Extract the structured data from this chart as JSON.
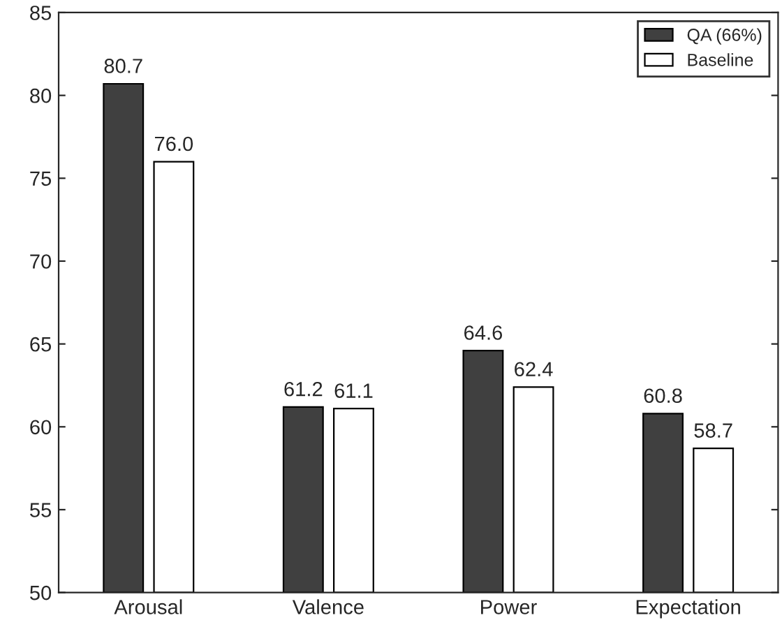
{
  "chart_data": {
    "type": "bar",
    "categories": [
      "Arousal",
      "Valence",
      "Power",
      "Expectation"
    ],
    "series": [
      {
        "name": "QA (66%)",
        "color": "#404040",
        "values": [
          80.7,
          61.2,
          64.6,
          60.8
        ],
        "value_labels": [
          "80.7",
          "61.2",
          "64.6",
          "60.8"
        ]
      },
      {
        "name": "Baseline",
        "color": "#ffffff",
        "values": [
          76.0,
          61.1,
          62.4,
          58.7
        ],
        "value_labels": [
          "76.0",
          "61.1",
          "62.4",
          "58.7"
        ]
      }
    ],
    "ylim": [
      50,
      85
    ],
    "yticks": [
      50,
      55,
      60,
      65,
      70,
      75,
      80,
      85
    ],
    "grid": false,
    "legend": "top right"
  }
}
